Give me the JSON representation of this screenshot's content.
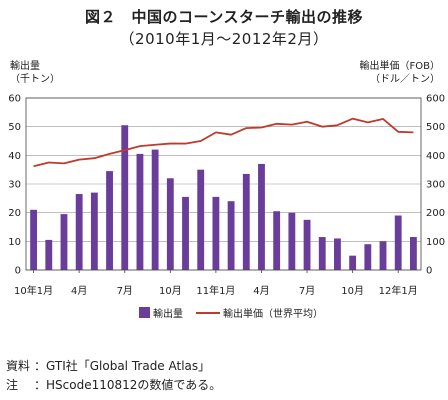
{
  "title_line1": "図２　中国のコーンスターチ輸出の推移",
  "title_line2": "（2010年1月～2012年2月）",
  "left_axis_label_1": "輸出量",
  "left_axis_label_2": "（千トン）",
  "right_axis_label_1": "輸出単価（FOB）",
  "right_axis_label_2": "（ドル／トン）",
  "note_source_label": "資料",
  "note_source_text": "：GTI社「Global Trade Atlas」",
  "note_note_label": "注",
  "note_note_text": "：HScode110812の数値である。",
  "colors": {
    "bar": "#6a3d9a",
    "line": "#c0392b"
  },
  "chart_data": {
    "type": "bar",
    "title": "図２　中国のコーンスターチ輸出の推移",
    "subtitle": "（2010年1月～2012年2月）",
    "ylabel": "輸出量（千トン）",
    "y2label": "輸出単価（FOB）（ドル／トン）",
    "ylim": [
      0,
      60
    ],
    "y2lim": [
      0,
      600
    ],
    "yticks": [
      0,
      10,
      20,
      30,
      40,
      50,
      60
    ],
    "y2ticks": [
      0,
      100,
      200,
      300,
      400,
      500,
      600
    ],
    "x_tick_labels": [
      {
        "index": 0,
        "label": "10年1月"
      },
      {
        "index": 3,
        "label": "4月"
      },
      {
        "index": 6,
        "label": "7月"
      },
      {
        "index": 9,
        "label": "10月"
      },
      {
        "index": 12,
        "label": "11年1月"
      },
      {
        "index": 15,
        "label": "4月"
      },
      {
        "index": 18,
        "label": "7月"
      },
      {
        "index": 21,
        "label": "10月"
      },
      {
        "index": 24,
        "label": "12年1月"
      }
    ],
    "categories": [
      "2010-01",
      "2010-02",
      "2010-03",
      "2010-04",
      "2010-05",
      "2010-06",
      "2010-07",
      "2010-08",
      "2010-09",
      "2010-10",
      "2010-11",
      "2010-12",
      "2011-01",
      "2011-02",
      "2011-03",
      "2011-04",
      "2011-05",
      "2011-06",
      "2011-07",
      "2011-08",
      "2011-09",
      "2011-10",
      "2011-11",
      "2011-12",
      "2012-01",
      "2012-02"
    ],
    "series": [
      {
        "name": "輸出量",
        "type": "bar",
        "axis": "left",
        "values": [
          21,
          10.5,
          19.5,
          26.5,
          27,
          34.5,
          50.5,
          40.5,
          42,
          32,
          25.5,
          35,
          25.5,
          24,
          33.5,
          37,
          20.5,
          20,
          17.5,
          11.5,
          11,
          5,
          9,
          10,
          19,
          11.5
        ]
      },
      {
        "name": "輸出単価（世界平均）",
        "type": "line",
        "axis": "right",
        "values": [
          362,
          375,
          372,
          385,
          390,
          405,
          418,
          432,
          437,
          441,
          441,
          450,
          480,
          472,
          495,
          497,
          510,
          507,
          517,
          500,
          505,
          528,
          515,
          527,
          482,
          480
        ]
      }
    ],
    "legend_position": "bottom",
    "grid": "horizontal"
  }
}
